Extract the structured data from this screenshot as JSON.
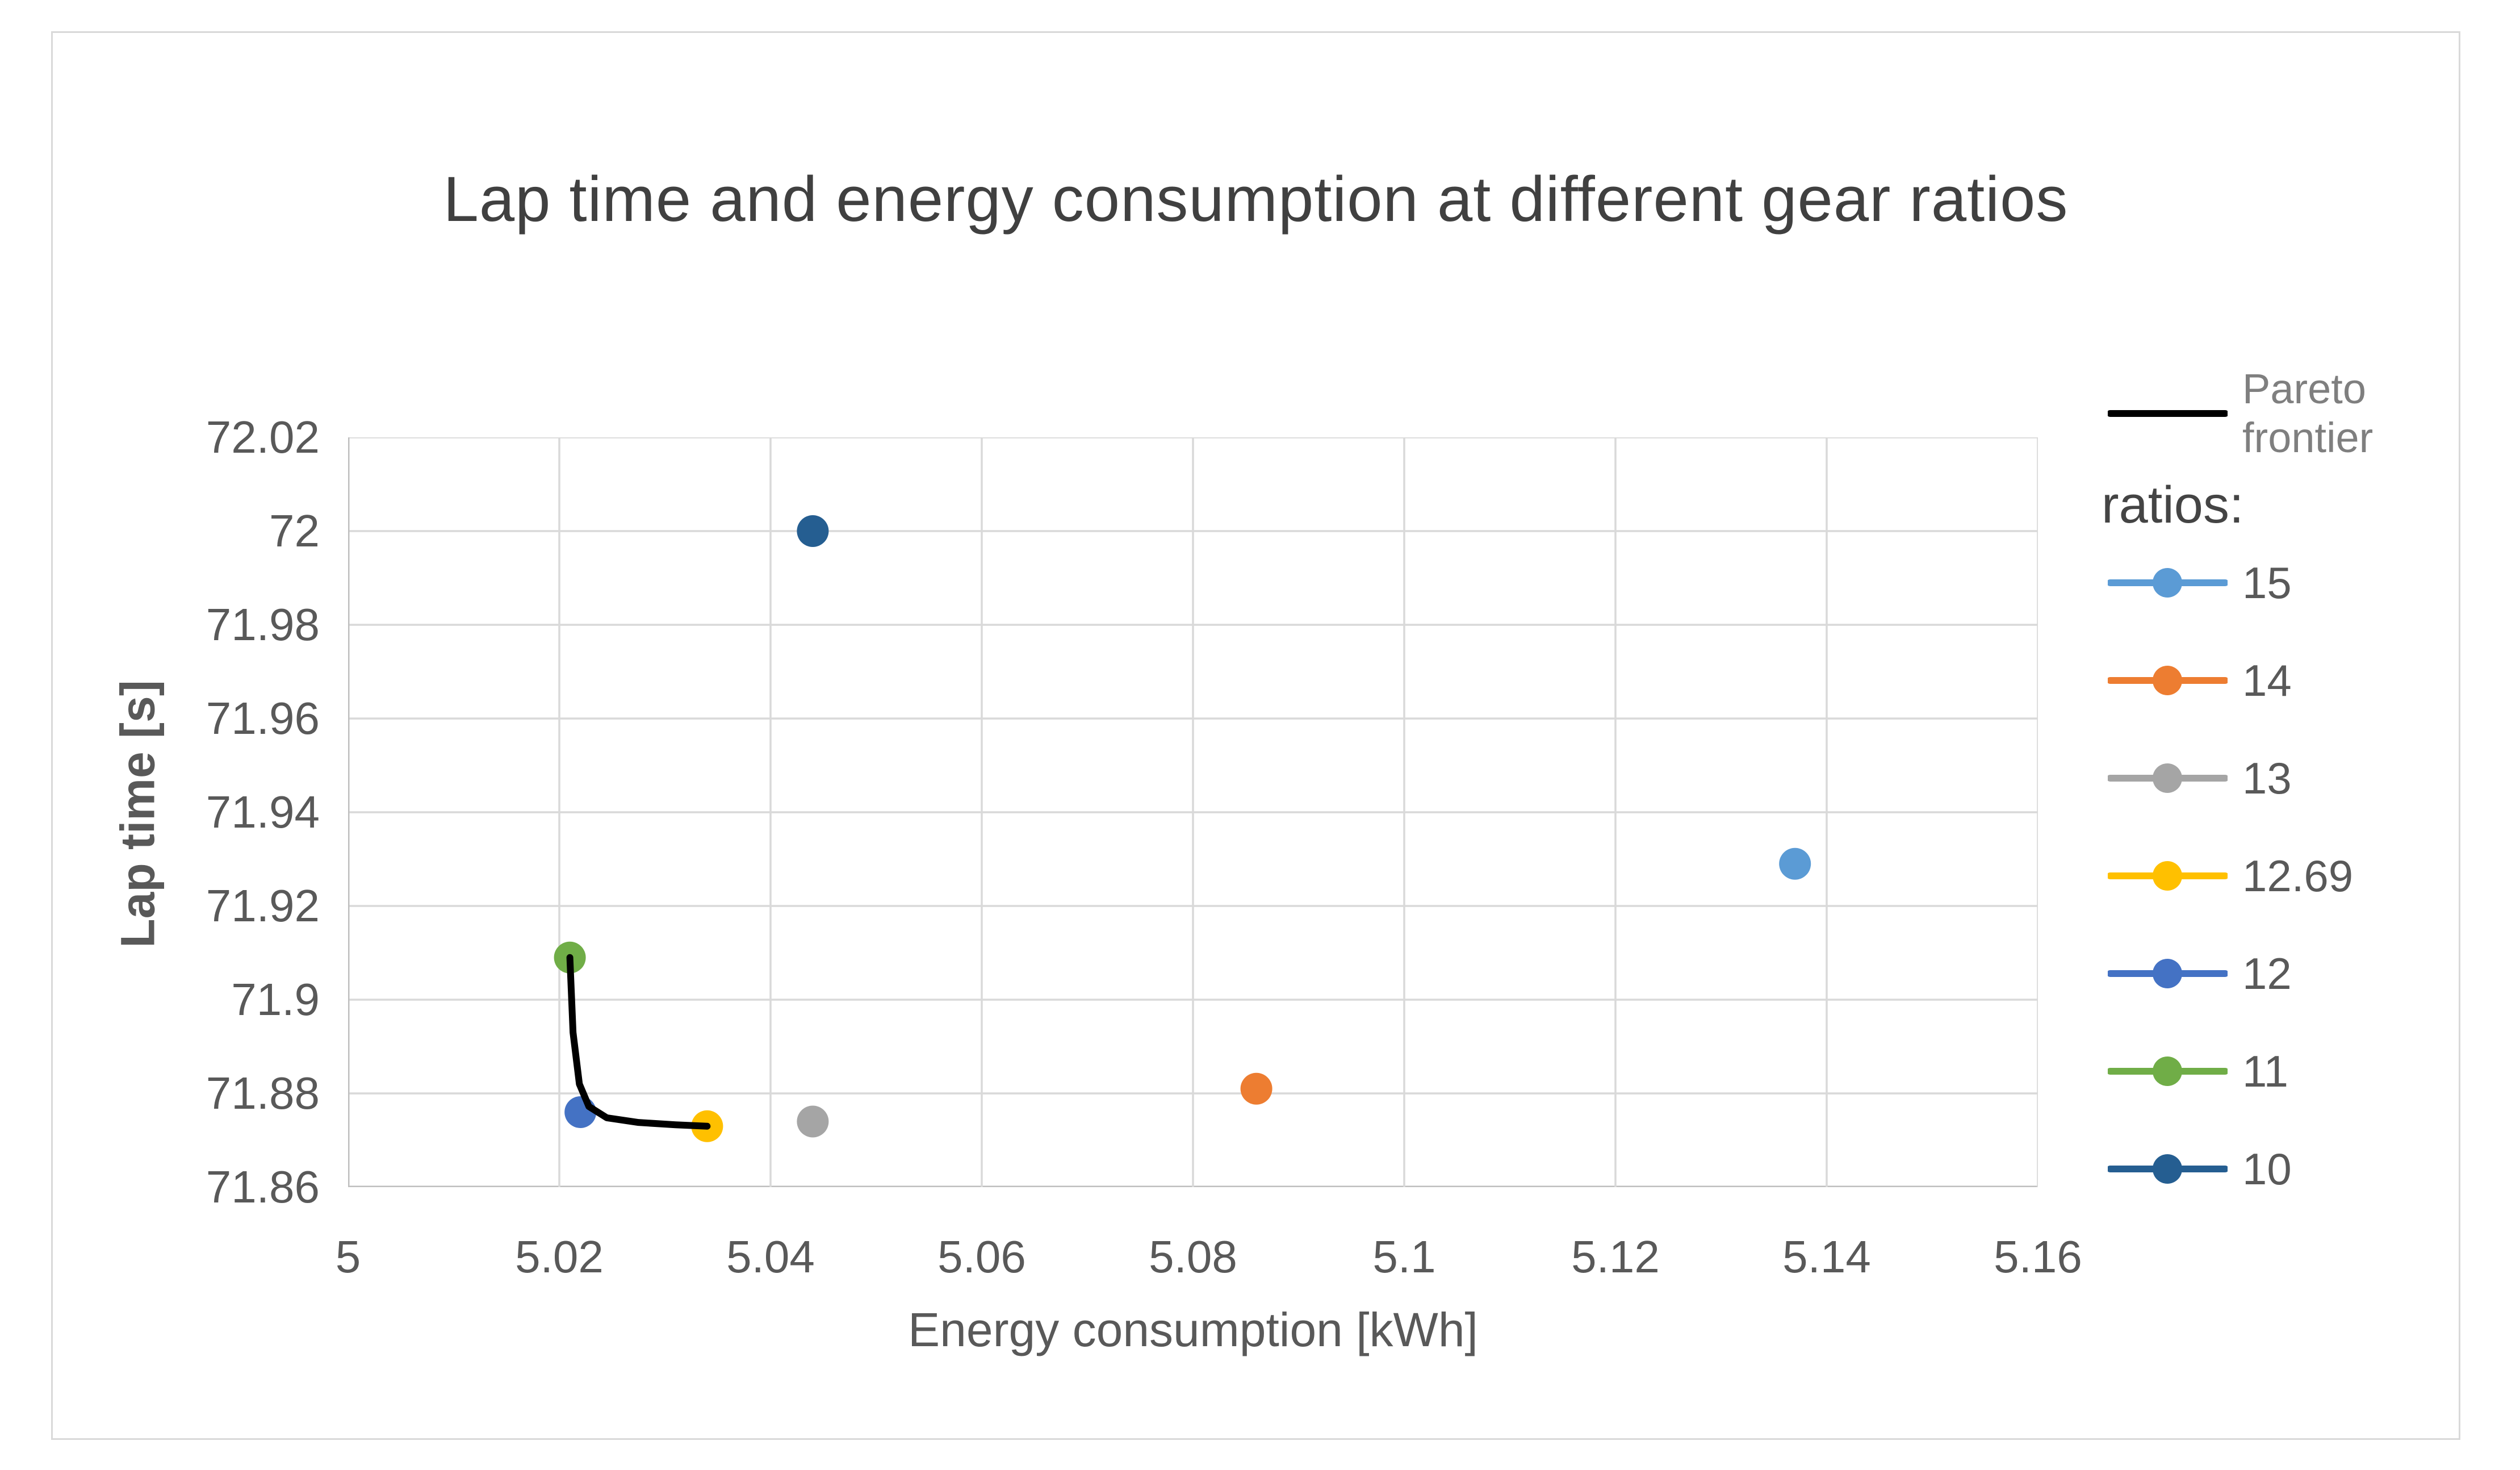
{
  "chart_data": {
    "type": "scatter",
    "title": "Lap time and energy consumption at different gear ratios",
    "xlabel": "Energy consumption [kWh]",
    "ylabel": "Lap time [s]",
    "x_axis": {
      "min": 5,
      "max": 5.16,
      "step": 0.02,
      "tick_labels": [
        "5",
        "5.02",
        "5.04",
        "5.06",
        "5.08",
        "5.1",
        "5.12",
        "5.14",
        "5.16"
      ]
    },
    "y_axis": {
      "min": 71.86,
      "max": 72.02,
      "step": 0.02,
      "tick_labels_top_to_bottom": [
        "72.02",
        "72",
        "71.98",
        "71.96",
        "71.94",
        "71.92",
        "71.9",
        "71.88",
        "71.86"
      ]
    },
    "grid": true,
    "legend_position": "right",
    "legend": {
      "pareto_label": "Pareto\nfrontier",
      "ratios_header": "ratios:"
    },
    "series": [
      {
        "name": "15",
        "color": "#5B9BD5",
        "points": [
          [
            5.137,
            71.929
          ]
        ]
      },
      {
        "name": "14",
        "color": "#ED7D31",
        "points": [
          [
            5.086,
            71.881
          ]
        ]
      },
      {
        "name": "13",
        "color": "#A5A5A5",
        "points": [
          [
            5.044,
            71.874
          ]
        ]
      },
      {
        "name": "12.69",
        "color": "#FFC000",
        "points": [
          [
            5.034,
            71.873
          ]
        ]
      },
      {
        "name": "12",
        "color": "#4472C4",
        "points": [
          [
            5.022,
            71.876
          ]
        ]
      },
      {
        "name": "11",
        "color": "#70AD47",
        "points": [
          [
            5.021,
            71.909
          ]
        ]
      },
      {
        "name": "10",
        "color": "#255E91",
        "points": [
          [
            5.044,
            72.0
          ]
        ]
      }
    ],
    "pareto_frontier": {
      "name": "Pareto frontier",
      "color": "#000000",
      "points": [
        [
          5.021,
          71.909
        ],
        [
          5.0213,
          71.893
        ],
        [
          5.0219,
          71.882
        ],
        [
          5.0228,
          71.8772
        ],
        [
          5.0245,
          71.8748
        ],
        [
          5.0275,
          71.8738
        ],
        [
          5.031,
          71.8733
        ],
        [
          5.034,
          71.873
        ]
      ]
    },
    "colors": {
      "background": "#FFFFFF",
      "frame_border": "#D9D9D9",
      "gridline": "#D9D9D9",
      "axis_line": "#BFBFBF",
      "title_text": "#404040",
      "tick_text": "#595959",
      "axis_title_text": "#595959",
      "legend_text": "#595959",
      "ratios_header_text": "#444444",
      "pareto_legend_text": "#7F7F7F"
    }
  }
}
